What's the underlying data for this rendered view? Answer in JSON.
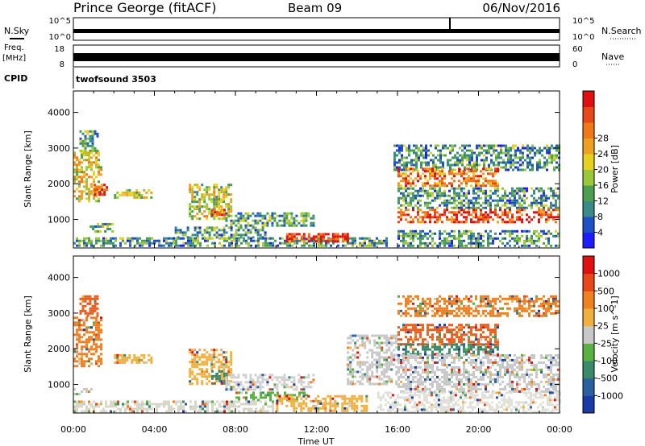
{
  "header": {
    "station": "Prince George (fitACF)",
    "beam": "Beam 09",
    "date": "06/Nov/2016"
  },
  "top_panels": {
    "nsky_label": "N.Sky",
    "nsky_ticks": [
      "10^5",
      "10^0"
    ],
    "nsearch_label": "N.Search",
    "nsearch_ticks": [
      "10^5",
      "10^0"
    ],
    "freq_label": "Freq.",
    "freq_unit": "[MHz]",
    "freq_ticks": [
      "18",
      "8"
    ],
    "nave_label": "Nave",
    "nave_ticks": [
      "60",
      "0"
    ],
    "cpid_label": "CPID",
    "cpid_value": "twofsound 3503"
  },
  "chart_data": [
    {
      "type": "heatmap",
      "name": "power",
      "xlabel": "",
      "ylabel": "Slant Range [km]",
      "x_ticks": [
        "00:00",
        "04:00",
        "08:00",
        "12:00",
        "16:00",
        "20:00",
        "00:00"
      ],
      "y_ticks": [
        "1000",
        "2000",
        "3000",
        "4000"
      ],
      "ylim": [
        200,
        4600
      ],
      "xlim_hours": [
        0,
        24
      ],
      "colorbar": {
        "label": "Power [dB]",
        "ticks": [
          "4",
          "8",
          "12",
          "16",
          "20",
          "24",
          "28"
        ],
        "colors": [
          "#1c1cff",
          "#2050c8",
          "#3a8a8a",
          "#4aa050",
          "#9ac83a",
          "#e8d020",
          "#f0a020",
          "#f07818",
          "#e84818",
          "#e01010"
        ]
      },
      "regions": [
        {
          "t0": 0.0,
          "t1": 1.4,
          "r0": 1500,
          "r1": 2900,
          "level": 0.55
        },
        {
          "t0": 0.3,
          "t1": 1.2,
          "r0": 2900,
          "r1": 3500,
          "level": 0.35
        },
        {
          "t0": 1.0,
          "t1": 1.6,
          "r0": 1700,
          "r1": 2000,
          "level": 0.85
        },
        {
          "t0": 2.0,
          "t1": 3.8,
          "r0": 1600,
          "r1": 1850,
          "level": 0.45
        },
        {
          "t0": 5.7,
          "t1": 7.8,
          "r0": 1000,
          "r1": 2000,
          "level": 0.5
        },
        {
          "t0": 6.8,
          "t1": 7.6,
          "r0": 1050,
          "r1": 1300,
          "level": 0.75
        },
        {
          "t0": 7.5,
          "t1": 11.8,
          "r0": 850,
          "r1": 1200,
          "level": 0.35
        },
        {
          "t0": 5.0,
          "t1": 9.5,
          "r0": 500,
          "r1": 800,
          "level": 0.3
        },
        {
          "t0": 0.0,
          "t1": 15.5,
          "r0": 250,
          "r1": 500,
          "level": 0.3
        },
        {
          "t0": 10.5,
          "t1": 13.5,
          "r0": 380,
          "r1": 620,
          "level": 0.9
        },
        {
          "t0": 15.8,
          "t1": 24.0,
          "r0": 2400,
          "r1": 3100,
          "level": 0.3
        },
        {
          "t0": 16.0,
          "t1": 21.0,
          "r0": 1950,
          "r1": 2450,
          "level": 0.75
        },
        {
          "t0": 16.0,
          "t1": 24.0,
          "r0": 1300,
          "r1": 1900,
          "level": 0.3
        },
        {
          "t0": 16.0,
          "t1": 24.0,
          "r0": 900,
          "r1": 1300,
          "level": 0.85
        },
        {
          "t0": 16.0,
          "t1": 24.0,
          "r0": 250,
          "r1": 700,
          "level": 0.3
        },
        {
          "t0": 0.8,
          "t1": 2.0,
          "r0": 650,
          "r1": 900,
          "level": 0.4
        }
      ]
    },
    {
      "type": "heatmap",
      "name": "velocity",
      "xlabel": "Time UT",
      "ylabel": "Slant Range [km]",
      "x_ticks": [
        "00:00",
        "04:00",
        "08:00",
        "12:00",
        "16:00",
        "20:00",
        "00:00"
      ],
      "y_ticks": [
        "1000",
        "2000",
        "3000",
        "4000"
      ],
      "ylim": [
        200,
        4600
      ],
      "xlim_hours": [
        0,
        24
      ],
      "colorbar": {
        "label": "Velocity [m s^-1]",
        "ticks": [
          "1000",
          "500",
          "100",
          "25",
          "-25",
          "-100",
          "-500",
          "-1000"
        ],
        "colors": [
          "#1a3aa8",
          "#2a60a0",
          "#3a8a6a",
          "#5ab040",
          "#c8c8c8",
          "#f0b040",
          "#f08020",
          "#e84818",
          "#e01010"
        ]
      },
      "regions": [
        {
          "t0": 0.0,
          "t1": 1.4,
          "r0": 1500,
          "r1": 2900,
          "color": "#f08020"
        },
        {
          "t0": 0.3,
          "t1": 1.2,
          "r0": 2900,
          "r1": 3500,
          "color": "#e86020"
        },
        {
          "t0": 2.0,
          "t1": 3.8,
          "r0": 1600,
          "r1": 1850,
          "color": "#f0b040"
        },
        {
          "t0": 5.7,
          "t1": 7.8,
          "r0": 1000,
          "r1": 2000,
          "color": "#f0b040"
        },
        {
          "t0": 6.8,
          "t1": 7.6,
          "r0": 1050,
          "r1": 1400,
          "color": "#3a8a6a"
        },
        {
          "t0": 7.5,
          "t1": 11.8,
          "r0": 850,
          "r1": 1300,
          "color": "#d0d0d0"
        },
        {
          "t0": 8.0,
          "t1": 11.5,
          "r0": 550,
          "r1": 800,
          "color": "#5ab040"
        },
        {
          "t0": 0.0,
          "t1": 10.0,
          "r0": 250,
          "r1": 550,
          "color": "#d8d8c8"
        },
        {
          "t0": 10.0,
          "t1": 14.5,
          "r0": 250,
          "r1": 700,
          "color": "#f0b040"
        },
        {
          "t0": 0.0,
          "t1": 1.0,
          "r0": 700,
          "r1": 900,
          "color": "#c8c8c8"
        },
        {
          "t0": 13.5,
          "t1": 16.0,
          "r0": 1000,
          "r1": 2400,
          "color": "#c8c8c8"
        },
        {
          "t0": 16.0,
          "t1": 24.0,
          "r0": 2900,
          "r1": 3500,
          "color": "#f08020"
        },
        {
          "t0": 16.0,
          "t1": 21.0,
          "r0": 2150,
          "r1": 2700,
          "color": "#e86020"
        },
        {
          "t0": 16.0,
          "t1": 21.0,
          "r0": 1850,
          "r1": 2150,
          "color": "#3a8a6a"
        },
        {
          "t0": 16.0,
          "t1": 24.0,
          "r0": 800,
          "r1": 1850,
          "color": "#c8c8c8"
        },
        {
          "t0": 15.0,
          "t1": 24.0,
          "r0": 250,
          "r1": 800,
          "color": "#e0e0d8"
        }
      ]
    }
  ]
}
